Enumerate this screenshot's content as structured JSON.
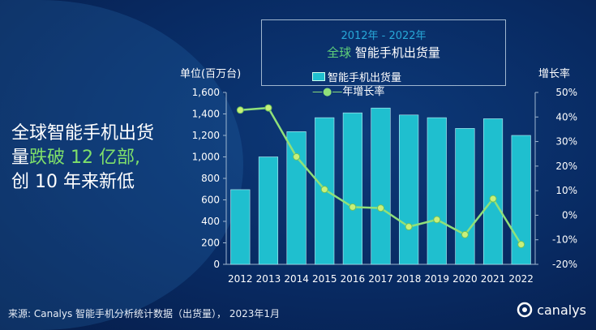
{
  "title_box": {
    "range": "2012年 - 2022年",
    "title_accent": "全球",
    "title_main": "智能手机出货量"
  },
  "headline": {
    "line1": "全球智能手机出货",
    "line2_a": "量",
    "line2_b": "跌破 12 亿部,",
    "line3": "创 10 年来新低"
  },
  "footer": "来源: Canalys 智能手机分析统计数据（出货量）， 2023年1月",
  "logo": "canalys",
  "colors": {
    "bar": "#1fbfcf",
    "line": "#8fe07a",
    "background": "#082a62"
  },
  "chart_data": {
    "type": "bar+line",
    "title": "2012年 - 2022年 全球智能手机出货量",
    "ylabel": "单位(百万台)",
    "y2label": "增长率",
    "categories": [
      "2012",
      "2013",
      "2014",
      "2015",
      "2016",
      "2017",
      "2018",
      "2019",
      "2020",
      "2021",
      "2022"
    ],
    "series": [
      {
        "name": "智能手机出货量",
        "type": "bar",
        "axis": "left",
        "values": [
          695,
          1000,
          1235,
          1365,
          1410,
          1455,
          1390,
          1365,
          1265,
          1355,
          1200
        ]
      },
      {
        "name": "年增长率",
        "type": "line",
        "axis": "right",
        "values": [
          42.8,
          43.7,
          23.8,
          10.5,
          3.3,
          2.9,
          -4.7,
          -1.8,
          -7.9,
          6.7,
          -11.9
        ]
      }
    ],
    "ylim": [
      0,
      1600
    ],
    "yticks": [
      "0",
      "200",
      "400",
      "600",
      "800",
      "1,000",
      "1,200",
      "1,400",
      "1,600"
    ],
    "y2lim": [
      -20,
      50
    ],
    "y2ticks": [
      "-20%",
      "-10%",
      "0%",
      "10%",
      "20%",
      "30%",
      "40%",
      "50%"
    ],
    "legend": "top-center"
  }
}
